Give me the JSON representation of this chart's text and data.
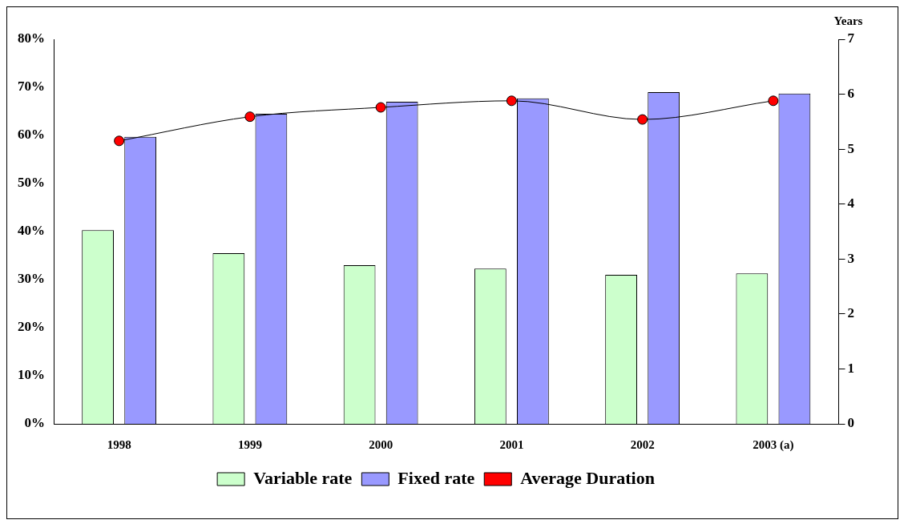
{
  "chart_data": {
    "type": "bar",
    "categories": [
      "1998",
      "1999",
      "2000",
      "2001",
      "2002",
      "2003 (a)"
    ],
    "series": [
      {
        "name": "Variable rate",
        "color": "#ccffcc",
        "values": [
          40.3,
          35.5,
          33,
          32.3,
          31,
          31.3
        ]
      },
      {
        "name": "Fixed rate",
        "color": "#9999ff",
        "values": [
          59.7,
          64.5,
          67,
          67.7,
          69,
          68.7
        ]
      },
      {
        "name": "Average Duration",
        "type": "line",
        "axis": "y2",
        "color": "#ff0000",
        "marker": "circle",
        "values": [
          5.15,
          5.59,
          5.76,
          5.88,
          5.54,
          5.88
        ]
      }
    ],
    "ylim": [
      0,
      80
    ],
    "yticks": [
      {
        "value": 0,
        "label": "0%"
      },
      {
        "value": 10,
        "label": "10%"
      },
      {
        "value": 20,
        "label": "20%"
      },
      {
        "value": 30,
        "label": "30%"
      },
      {
        "value": 40,
        "label": "40%"
      },
      {
        "value": 50,
        "label": "50%"
      },
      {
        "value": 60,
        "label": "60%"
      },
      {
        "value": 70,
        "label": "70%"
      },
      {
        "value": 80,
        "label": "80%"
      }
    ],
    "y2lim": [
      0,
      7
    ],
    "y2ticks": [
      0,
      1,
      2,
      3,
      4,
      5,
      6,
      7
    ],
    "y2label": "Years",
    "legend": "bottom",
    "grid": false
  }
}
